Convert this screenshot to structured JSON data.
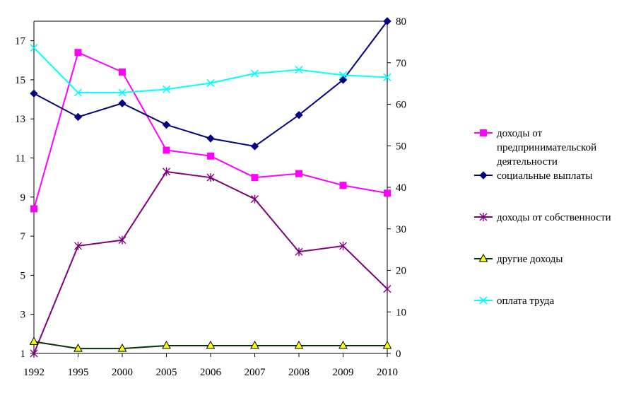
{
  "chart_data": {
    "type": "line",
    "title": "",
    "x": [
      "1992",
      "1995",
      "2000",
      "2005",
      "2006",
      "2007",
      "2008",
      "2009",
      "2010"
    ],
    "y_left": {
      "min": 1,
      "max": 18,
      "ticks": [
        "1",
        "3",
        "5",
        "7",
        "9",
        "11",
        "13",
        "15",
        "17"
      ]
    },
    "y_right": {
      "min": 0,
      "max": 80,
      "ticks": [
        "0",
        "10",
        "20",
        "30",
        "40",
        "50",
        "60",
        "70",
        "80"
      ]
    },
    "legend_position": "right",
    "series": [
      {
        "name": "доходы от предпринимательской деятельности",
        "legend_lines": [
          "доходы от",
          "предпринимательской",
          "деятельности"
        ],
        "axis": "left",
        "color": "#ff00ff",
        "marker": "square",
        "values": [
          8.4,
          16.4,
          15.4,
          11.4,
          11.1,
          10.0,
          10.2,
          9.6,
          9.2
        ]
      },
      {
        "name": "социальные выплаты",
        "legend_lines": [
          "социальные выплаты"
        ],
        "axis": "left",
        "color": "#000080",
        "marker": "diamond",
        "values": [
          14.3,
          13.1,
          13.8,
          12.7,
          12.0,
          11.6,
          13.2,
          15.0,
          18.0
        ]
      },
      {
        "name": "доходы от собственности",
        "legend_lines": [
          "доходы от собственности"
        ],
        "axis": "left",
        "color": "#800080",
        "marker": "asterisk",
        "values": [
          1.0,
          6.5,
          6.8,
          10.3,
          10.0,
          8.9,
          6.2,
          6.5,
          4.3
        ]
      },
      {
        "name": "другие доходы",
        "legend_lines": [
          "другие доходы"
        ],
        "axis": "left",
        "color": "#003300",
        "markerFill": "#ffff00",
        "marker": "triangle",
        "values": [
          1.6,
          1.25,
          1.25,
          1.4,
          1.4,
          1.4,
          1.4,
          1.4,
          1.4
        ]
      },
      {
        "name": "оплата труда",
        "legend_lines": [
          "оплата труда"
        ],
        "axis": "right",
        "color": "#00ffff",
        "marker": "x",
        "values": [
          73.6,
          62.8,
          62.8,
          63.6,
          65.1,
          67.4,
          68.3,
          67.0,
          66.5
        ]
      }
    ]
  }
}
